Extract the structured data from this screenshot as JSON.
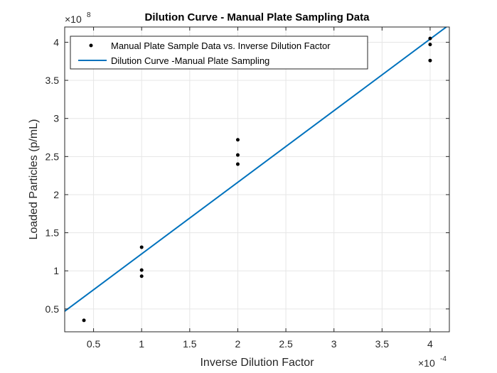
{
  "chart_data": {
    "type": "scatter",
    "title": "Dilution Curve - Manual Plate Sampling Data",
    "xlabel": "Inverse Dilution Factor",
    "ylabel": "Loaded Particles (p/mL)",
    "x_multiplier": "×10",
    "x_multiplier_exp": "-4",
    "y_multiplier": "×10",
    "y_multiplier_exp": "8",
    "xlim": [
      0.2,
      4.2
    ],
    "ylim": [
      0.2,
      4.2
    ],
    "x_ticks": [
      "0.5",
      "1",
      "1.5",
      "2",
      "2.5",
      "3",
      "3.5",
      "4"
    ],
    "y_ticks": [
      "0.5",
      "1",
      "1.5",
      "2",
      "2.5",
      "3",
      "3.5",
      "4"
    ],
    "grid": true,
    "legend_position": "top-left",
    "series": [
      {
        "name": "Manual Plate Sample Data vs. Inverse Dilution Factor",
        "kind": "points",
        "color": "#000000",
        "x": [
          0.4,
          1,
          1,
          1,
          2,
          2,
          2,
          4,
          4,
          4
        ],
        "y": [
          0.35,
          1.31,
          1.01,
          0.93,
          2.72,
          2.52,
          2.4,
          4.05,
          3.97,
          3.76
        ]
      },
      {
        "name": "Dilution Curve -Manual Plate Sampling",
        "kind": "line",
        "color": "#0072BD",
        "x": [
          0.2,
          4.2
        ],
        "y": [
          0.47,
          4.23
        ]
      }
    ]
  }
}
